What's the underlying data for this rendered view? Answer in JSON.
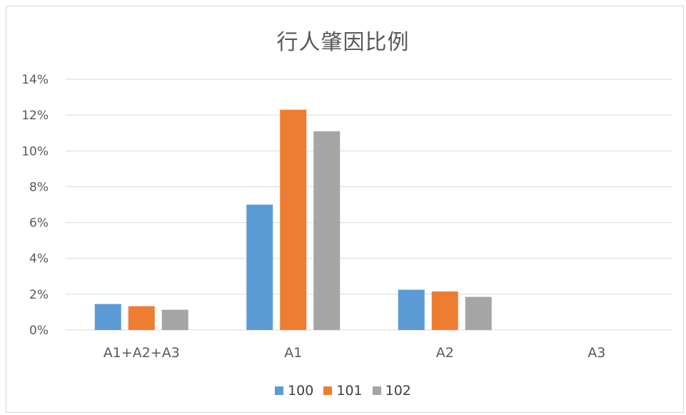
{
  "chart_data": {
    "type": "bar",
    "title": "行人肇因比例",
    "xlabel": "",
    "ylabel": "",
    "categories": [
      "A1+A2+A3",
      "A1",
      "A2",
      "A3"
    ],
    "series": [
      {
        "name": "100",
        "color": "#5b9bd5",
        "values": [
          0.0145,
          0.07,
          0.0225,
          0
        ]
      },
      {
        "name": "101",
        "color": "#ed7d31",
        "values": [
          0.0133,
          0.123,
          0.0215,
          0
        ]
      },
      {
        "name": "102",
        "color": "#a5a5a5",
        "values": [
          0.0113,
          0.111,
          0.0185,
          0
        ]
      }
    ],
    "ylim": [
      0,
      0.14
    ],
    "yticks": [
      "0%",
      "2%",
      "4%",
      "6%",
      "8%",
      "10%",
      "12%",
      "14%"
    ],
    "grid": true,
    "legend_position": "bottom"
  }
}
